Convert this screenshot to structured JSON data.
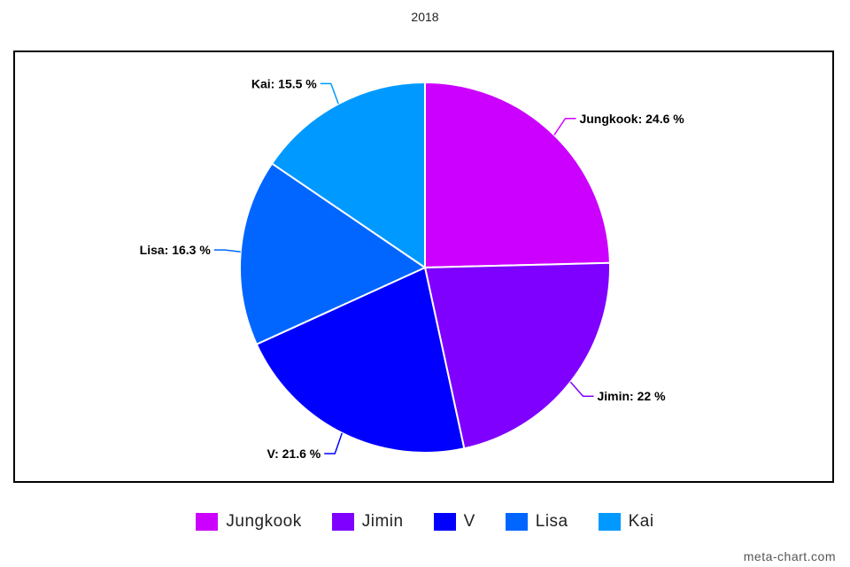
{
  "chart_data": {
    "type": "pie",
    "title": "2018",
    "slices": [
      {
        "name": "Jungkook",
        "value": 24.6,
        "label": "Jungkook: 24.6 %",
        "color": "#cc00ff"
      },
      {
        "name": "Jimin",
        "value": 22,
        "label": "Jimin: 22 %",
        "color": "#7f00ff"
      },
      {
        "name": "V",
        "value": 21.6,
        "label": "V: 21.6 %",
        "color": "#0000ff"
      },
      {
        "name": "Lisa",
        "value": 16.3,
        "label": "Lisa: 16.3 %",
        "color": "#0066ff"
      },
      {
        "name": "Kai",
        "value": 15.5,
        "label": "Kai: 15.5 %",
        "color": "#0099ff"
      }
    ],
    "legend_placement": "bottom",
    "start_angle": "top, clockwise"
  },
  "watermark": "meta-chart.com"
}
